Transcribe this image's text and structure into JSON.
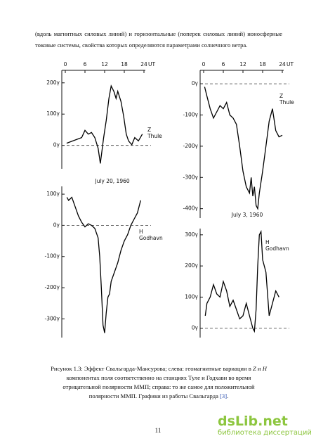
{
  "text": "(вдоль магнитных силовых линий) и горизонтальные (поперек силовых линий) ионосферные токовые системы, свойства которых определяются параметрами солнечного ветра.",
  "figure": {
    "left_date": "July 20, 1960",
    "right_date": "July 3, 1960"
  },
  "chart_data": [
    {
      "type": "line",
      "xlabel": "UT",
      "xlim": [
        0,
        24
      ],
      "xticks": [
        0,
        6,
        12,
        18,
        24
      ],
      "ylim": [
        -75,
        240
      ],
      "yticks": [
        {
          "value": 0,
          "label": "0γ"
        },
        {
          "value": 100,
          "label": "100γ"
        },
        {
          "value": 200,
          "label": "200γ"
        }
      ],
      "annotation": [
        "Z",
        "Thule"
      ],
      "dashed_zero": true,
      "series": [
        {
          "color": "#000000",
          "x": [
            0.4,
            5,
            6,
            7,
            8,
            9,
            10,
            10.7,
            11.7,
            12.5,
            13.3,
            14,
            14.8,
            15.5,
            16,
            17,
            17.8,
            18.6,
            19.3,
            20.3,
            21.2,
            22.3,
            23.5
          ],
          "values": [
            7,
            25,
            48,
            36,
            41,
            25,
            -9,
            -58,
            25,
            80,
            150,
            190,
            173,
            150,
            173,
            140,
            93,
            36,
            14,
            2,
            25,
            14,
            36
          ]
        }
      ]
    },
    {
      "type": "line",
      "xlim": [
        0,
        24
      ],
      "ylim": [
        -360,
        125
      ],
      "yticks": [
        {
          "value": -300,
          "label": "-300γ"
        },
        {
          "value": -200,
          "label": "-200γ"
        },
        {
          "value": -100,
          "label": "-100γ"
        },
        {
          "value": 0,
          "label": "0γ"
        },
        {
          "value": 100,
          "label": "100γ"
        }
      ],
      "annotation": [
        "H",
        "Godhavn"
      ],
      "dashed_zero": true,
      "series": [
        {
          "color": "#000000",
          "x": [
            0.5,
            1,
            2,
            3,
            4,
            5,
            6,
            7,
            8,
            9,
            10,
            10.5,
            11,
            11.5,
            12,
            12.5,
            13,
            13.5,
            14,
            15,
            16,
            17,
            18,
            19,
            20,
            21,
            22,
            23
          ],
          "values": [
            90,
            80,
            90,
            60,
            30,
            10,
            -5,
            5,
            0,
            -10,
            -40,
            -100,
            -200,
            -320,
            -345,
            -280,
            -230,
            -220,
            -180,
            -150,
            -120,
            -80,
            -50,
            -30,
            0,
            20,
            40,
            80
          ]
        }
      ]
    },
    {
      "type": "line",
      "xlabel": "UT",
      "xlim": [
        0,
        24
      ],
      "xticks": [
        0,
        6,
        12,
        18,
        24
      ],
      "ylim": [
        -430,
        43
      ],
      "yticks": [
        {
          "value": -400,
          "label": "-400γ"
        },
        {
          "value": -300,
          "label": "-300γ"
        },
        {
          "value": -200,
          "label": "-200γ"
        },
        {
          "value": -100,
          "label": "-100γ"
        },
        {
          "value": 0,
          "label": "0γ"
        }
      ],
      "annotation": [
        "Z",
        "Thule"
      ],
      "dashed_zero": true,
      "series": [
        {
          "color": "#000000",
          "x": [
            0.3,
            1,
            2,
            3,
            4,
            5,
            6,
            7,
            8,
            9,
            10,
            11,
            12,
            13,
            14,
            14.5,
            15,
            15.5,
            16,
            16.5,
            17,
            18,
            19,
            20,
            21,
            22,
            23,
            24
          ],
          "values": [
            -10,
            -40,
            -80,
            -110,
            -90,
            -70,
            -80,
            -60,
            -100,
            -110,
            -130,
            -200,
            -280,
            -330,
            -350,
            -300,
            -360,
            -330,
            -390,
            -400,
            -350,
            -280,
            -200,
            -120,
            -80,
            -150,
            -170,
            -165
          ]
        }
      ]
    },
    {
      "type": "line",
      "xlim": [
        0,
        24
      ],
      "ylim": [
        -30,
        320
      ],
      "yticks": [
        {
          "value": 0,
          "label": "0γ"
        },
        {
          "value": 100,
          "label": "100γ"
        },
        {
          "value": 200,
          "label": "200γ"
        },
        {
          "value": 300,
          "label": "300γ"
        }
      ],
      "annotation": [
        "H",
        "Godhavn"
      ],
      "dashed_zero": true,
      "series": [
        {
          "color": "#000000",
          "x": [
            0.5,
            1,
            2,
            3,
            4,
            5,
            6,
            7,
            8,
            9,
            10,
            11,
            12,
            13,
            14,
            15,
            15.5,
            16,
            16.5,
            17,
            17.5,
            18,
            19,
            20,
            21,
            22,
            23
          ],
          "values": [
            40,
            80,
            100,
            140,
            110,
            100,
            150,
            120,
            70,
            90,
            60,
            30,
            40,
            80,
            40,
            0,
            -10,
            60,
            200,
            300,
            310,
            220,
            180,
            40,
            80,
            120,
            100
          ]
        }
      ]
    }
  ],
  "caption": {
    "part1": "Рисунок 1.3: Эффект Свальгарда-Мансурова; слева: геомагнитные вариации в",
    "z": "Z",
    "and": "и",
    "h": "H",
    "part2": "компонентах поля соответственно на станциях Туле и Годхавн во время отрицательной полярности ММП; справа: то же самое для положительной полярности ММП. Графики из работы Свальгарда",
    "ref": "[3]",
    "end": "."
  },
  "page_number": "11",
  "watermark": {
    "logo": "dsLib.net",
    "tagline": "библиотека диссертаций"
  }
}
